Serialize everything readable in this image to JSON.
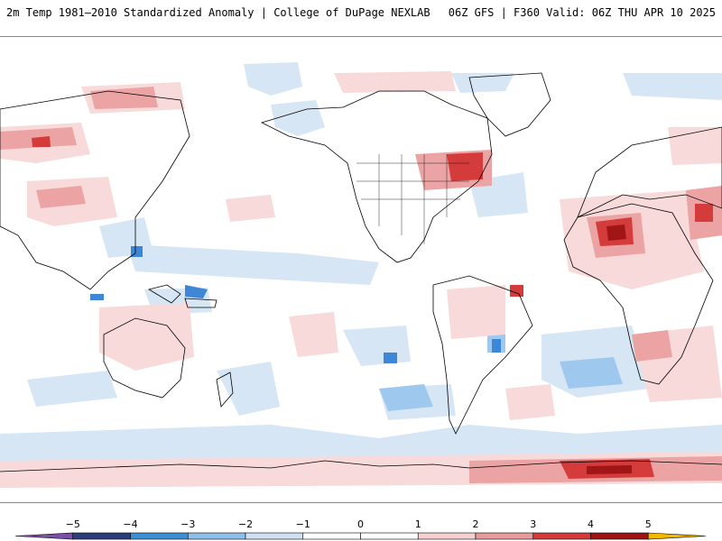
{
  "header": {
    "title": "2m Temp 1981–2010 Standardized Anomaly | College of DuPage NEXLAB",
    "run_info": "06Z GFS | F360 Valid: 06Z THU APR 10 2025"
  },
  "legend": {
    "ticks": [
      "−5",
      "−4",
      "−3",
      "−2",
      "−1",
      "0",
      "1",
      "2",
      "3",
      "4",
      "5"
    ],
    "colors": [
      "#7b4fa6",
      "#2d3f7a",
      "#3a8fd6",
      "#8ec0ea",
      "#cfe1f3",
      "#ffffff",
      "#ffffff",
      "#f6d0cf",
      "#e79b9a",
      "#d63a3a",
      "#9e1414",
      "#f5b800"
    ]
  },
  "map": {
    "colors": {
      "land_outline": "#000000",
      "cold_light": "#d6e6f5",
      "cold_mid": "#9ec8ee",
      "cold_strong": "#3e86d6",
      "warm_light": "#f8dada",
      "warm_mid": "#eca3a3",
      "warm_strong": "#d43b3b",
      "warm_extreme": "#a01515"
    }
  }
}
